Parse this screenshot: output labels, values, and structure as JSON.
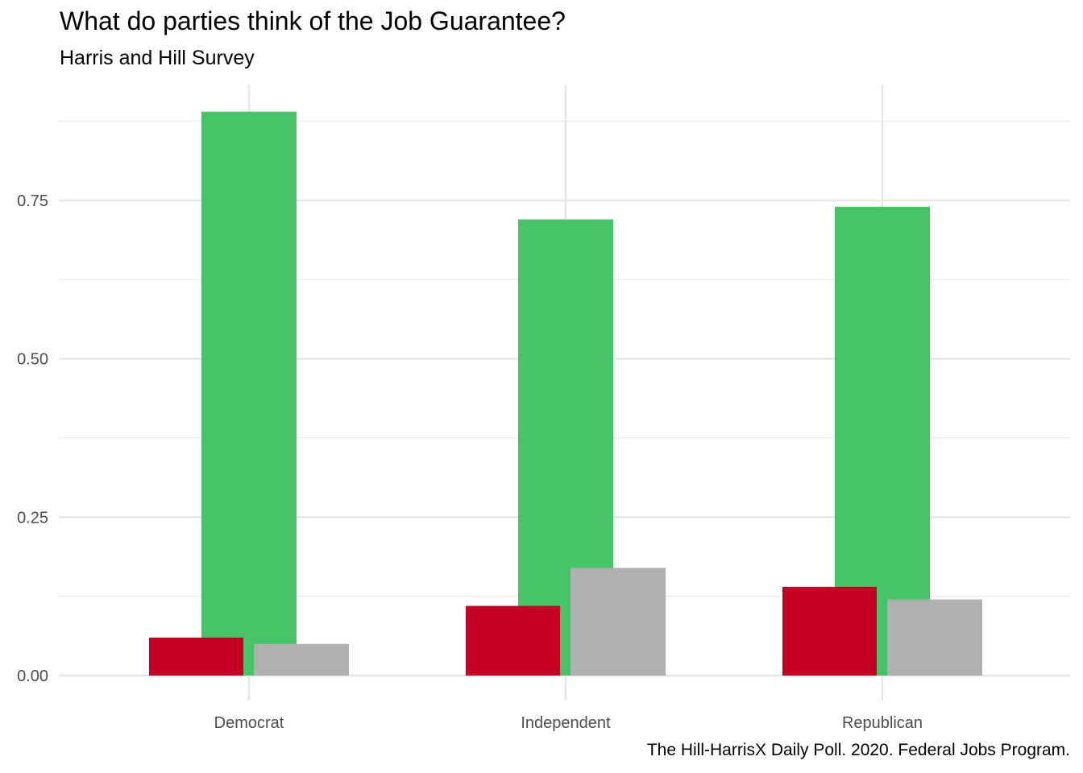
{
  "chart_data": {
    "type": "bar",
    "title": "What do parties think of the Job Guarantee?",
    "subtitle": "Harris and Hill Survey",
    "caption": "The Hill-HarrisX Daily Poll. 2020. Federal Jobs Program.",
    "xlabel": "",
    "ylabel": "",
    "categories": [
      "Democrat",
      "Independent",
      "Republican"
    ],
    "series": [
      {
        "color": "#45c366",
        "values": [
          0.89,
          0.72,
          0.74
        ]
      },
      {
        "color": "#c50025",
        "values": [
          0.06,
          0.11,
          0.14
        ]
      },
      {
        "color": "#b0b0b0",
        "values": [
          0.05,
          0.17,
          0.12
        ]
      }
    ],
    "y_ticks": [
      0.0,
      0.25,
      0.5,
      0.75
    ],
    "y_tick_labels": [
      "0.00",
      "0.25",
      "0.50",
      "0.75"
    ],
    "ylim": [
      -0.033,
      0.933
    ],
    "grid": true,
    "legend": "none"
  }
}
